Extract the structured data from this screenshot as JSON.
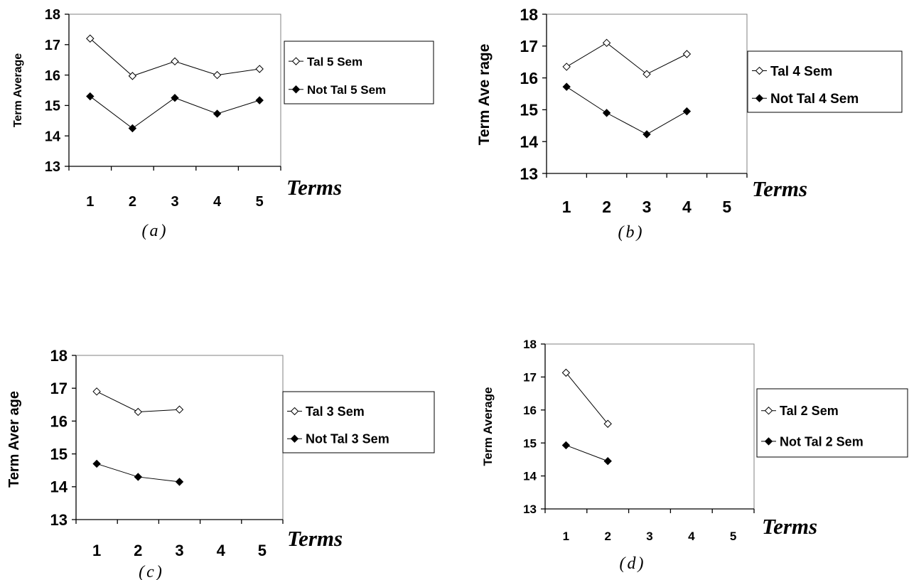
{
  "chart_data": [
    {
      "type": "line",
      "caption": "(a)",
      "xlabel": "Terms",
      "ylabel": "Term Average",
      "x": [
        1,
        2,
        3,
        4,
        5
      ],
      "ylim": [
        13,
        18
      ],
      "yticks": [
        13,
        14,
        15,
        16,
        17,
        18
      ],
      "grid": false,
      "legend_position": "right",
      "series": [
        {
          "name": "Tal 5 Sem",
          "values": [
            17.2,
            15.97,
            16.45,
            16.0,
            16.2
          ],
          "marker": "open-diamond",
          "color": "#000000"
        },
        {
          "name": "Not Tal 5 Sem",
          "values": [
            15.3,
            14.25,
            15.25,
            14.73,
            15.17
          ],
          "marker": "filled-diamond",
          "color": "#000000"
        }
      ]
    },
    {
      "type": "line",
      "caption": "(b)",
      "xlabel": "Terms",
      "ylabel": "Term Ave rage",
      "x": [
        1,
        2,
        3,
        4,
        5
      ],
      "ylim": [
        13,
        18
      ],
      "yticks": [
        13,
        14,
        15,
        16,
        17,
        18
      ],
      "grid": false,
      "legend_position": "right",
      "series": [
        {
          "name": "Tal 4 Sem",
          "values": [
            16.35,
            17.1,
            16.12,
            16.75,
            null
          ],
          "marker": "open-diamond",
          "color": "#000000"
        },
        {
          "name": "Not Tal 4 Sem",
          "values": [
            15.72,
            14.9,
            14.23,
            14.95,
            null
          ],
          "marker": "filled-diamond",
          "color": "#000000"
        }
      ]
    },
    {
      "type": "line",
      "caption": "(c)",
      "xlabel": "Terms",
      "ylabel": "Term Aver age",
      "x": [
        1,
        2,
        3,
        4,
        5
      ],
      "ylim": [
        13,
        18
      ],
      "yticks": [
        13,
        14,
        15,
        16,
        17,
        18
      ],
      "grid": false,
      "legend_position": "right",
      "series": [
        {
          "name": "Tal 3 Sem",
          "values": [
            16.9,
            16.28,
            16.35,
            null,
            null
          ],
          "marker": "open-diamond",
          "color": "#000000"
        },
        {
          "name": "Not Tal 3 Sem",
          "values": [
            14.7,
            14.3,
            14.15,
            null,
            null
          ],
          "marker": "filled-diamond",
          "color": "#000000"
        }
      ]
    },
    {
      "type": "line",
      "caption": "(d)",
      "xlabel": "Terms",
      "ylabel": "Term Average",
      "x": [
        1,
        2,
        3,
        4,
        5
      ],
      "ylim": [
        13,
        18
      ],
      "yticks": [
        13,
        14,
        15,
        16,
        17,
        18
      ],
      "grid": false,
      "legend_position": "right",
      "series": [
        {
          "name": "Tal 2 Sem",
          "values": [
            17.13,
            15.58,
            null,
            null,
            null
          ],
          "marker": "open-diamond",
          "color": "#000000"
        },
        {
          "name": "Not Tal 2 Sem",
          "values": [
            14.93,
            14.45,
            null,
            null,
            null
          ],
          "marker": "filled-diamond",
          "color": "#000000"
        }
      ]
    }
  ]
}
